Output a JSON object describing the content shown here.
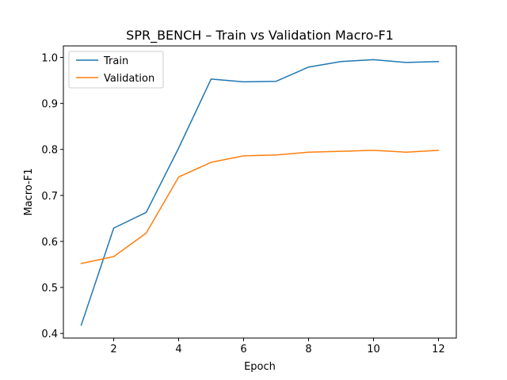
{
  "chart_data": {
    "type": "line",
    "title": "SPR_BENCH – Train vs Validation Macro-F1",
    "xlabel": "Epoch",
    "ylabel": "Macro-F1",
    "x": [
      1,
      2,
      3,
      4,
      5,
      6,
      7,
      8,
      9,
      10,
      11,
      12
    ],
    "xticks": [
      2,
      4,
      6,
      8,
      10,
      12
    ],
    "yticks": [
      0.4,
      0.5,
      0.6,
      0.7,
      0.8,
      0.9,
      1.0
    ],
    "ytick_labels": [
      "0.4",
      "0.5",
      "0.6",
      "0.7",
      "0.8",
      "0.9",
      "1.0"
    ],
    "xlim": [
      0.45,
      12.55
    ],
    "ylim": [
      0.39,
      1.025
    ],
    "grid": false,
    "legend_position": "top-left",
    "series": [
      {
        "name": "Train",
        "color": "#1f77b4",
        "values": [
          0.418,
          0.629,
          0.663,
          0.803,
          0.953,
          0.947,
          0.948,
          0.979,
          0.991,
          0.995,
          0.989,
          0.991
        ]
      },
      {
        "name": "Validation",
        "color": "#ff7f0e",
        "values": [
          0.552,
          0.567,
          0.618,
          0.74,
          0.772,
          0.786,
          0.788,
          0.794,
          0.796,
          0.798,
          0.794,
          0.798
        ]
      }
    ]
  }
}
